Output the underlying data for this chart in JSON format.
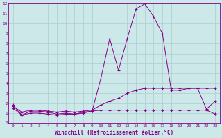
{
  "xlabel": "Windchill (Refroidissement éolien,°C)",
  "background_color": "#cce8e8",
  "grid_color": "#aacece",
  "line_color": "#880088",
  "xlim": [
    -0.5,
    23.5
  ],
  "ylim": [
    0,
    12
  ],
  "xticks": [
    0,
    1,
    2,
    3,
    4,
    5,
    6,
    7,
    8,
    9,
    10,
    11,
    12,
    13,
    14,
    15,
    16,
    17,
    18,
    19,
    20,
    21,
    22,
    23
  ],
  "yticks": [
    0,
    1,
    2,
    3,
    4,
    5,
    6,
    7,
    8,
    9,
    10,
    11,
    12
  ],
  "hours": [
    0,
    1,
    2,
    3,
    4,
    5,
    6,
    7,
    8,
    9,
    10,
    11,
    12,
    13,
    14,
    15,
    16,
    17,
    18,
    19,
    20,
    21,
    22,
    23
  ],
  "temp_line1": [
    1.8,
    0.8,
    1.2,
    1.2,
    1.1,
    0.9,
    1.0,
    0.9,
    1.0,
    1.2,
    4.5,
    8.5,
    5.3,
    8.5,
    11.5,
    12.0,
    10.7,
    9.0,
    3.3,
    3.3,
    3.5,
    3.5,
    1.4,
    2.2
  ],
  "temp_line2": [
    1.7,
    1.1,
    1.3,
    1.3,
    1.2,
    1.1,
    1.2,
    1.1,
    1.2,
    1.3,
    1.8,
    2.2,
    2.5,
    3.0,
    3.3,
    3.5,
    3.5,
    3.5,
    3.5,
    3.5,
    3.5,
    3.5,
    3.5,
    3.5
  ],
  "temp_line3": [
    1.5,
    0.8,
    1.0,
    1.0,
    0.9,
    0.8,
    0.9,
    0.9,
    1.1,
    1.2,
    1.3,
    1.3,
    1.3,
    1.3,
    1.3,
    1.3,
    1.3,
    1.3,
    1.3,
    1.3,
    1.3,
    1.3,
    1.3,
    0.9
  ]
}
